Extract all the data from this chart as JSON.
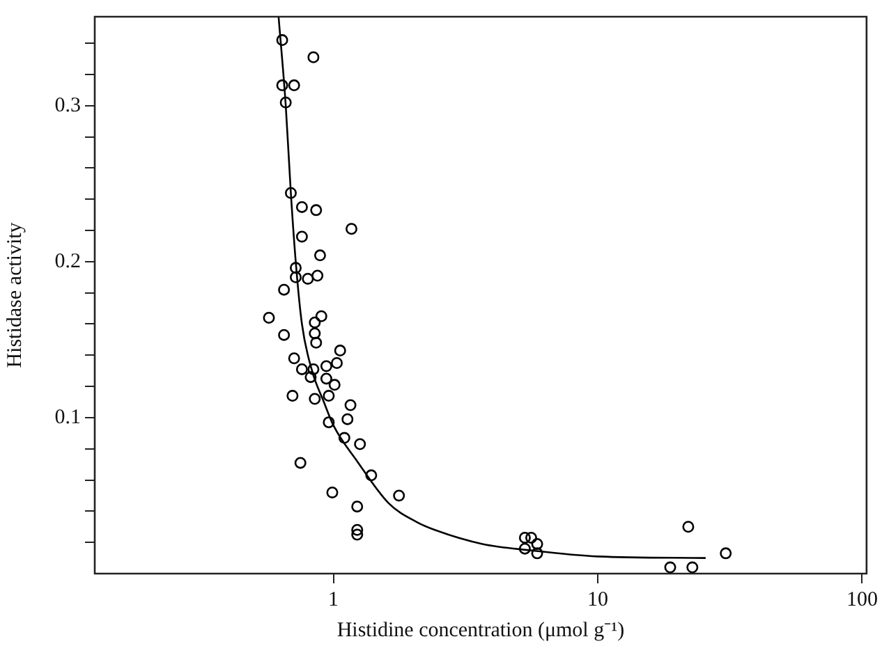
{
  "chart_data": {
    "type": "scatter",
    "xlabel": "Histidine concentration (μmol g⁻¹)",
    "ylabel": "Histidase activity",
    "log": "x",
    "marker": "circle",
    "grid": false,
    "legend": false,
    "xlim": [
      0.125,
      104
    ],
    "xticks": [
      1,
      10,
      100
    ],
    "ylim": [
      0,
      0.357
    ],
    "yticks": [
      {
        "value": 0.02,
        "label": null
      },
      {
        "value": 0.04,
        "label": null
      },
      {
        "value": 0.06,
        "label": null
      },
      {
        "value": 0.08,
        "label": null
      },
      0.1,
      {
        "value": 0.12,
        "label": null
      },
      {
        "value": 0.14,
        "label": null
      },
      {
        "value": 0.16,
        "label": null
      },
      {
        "value": 0.18,
        "label": null
      },
      0.2,
      {
        "value": 0.22,
        "label": null
      },
      {
        "value": 0.24,
        "label": null
      },
      {
        "value": 0.26,
        "label": null
      },
      {
        "value": 0.28,
        "label": null
      },
      0.3,
      {
        "value": 0.32,
        "label": null
      },
      {
        "value": 0.34,
        "label": null
      }
    ],
    "series": [
      {
        "color": "#000000",
        "x": [
          0.64,
          0.84,
          0.64,
          0.71,
          0.66,
          0.69,
          0.76,
          0.86,
          1.17,
          0.76,
          0.89,
          0.72,
          0.72,
          0.8,
          0.87,
          0.65,
          0.57,
          0.9,
          0.85,
          0.65,
          0.85,
          0.86,
          1.06,
          0.71,
          0.76,
          0.84,
          0.94,
          1.03,
          0.82,
          0.94,
          1.01,
          0.7,
          0.96,
          0.85,
          1.16,
          1.13,
          0.96,
          1.1,
          1.26,
          0.75,
          1.39,
          1.77,
          0.99,
          1.23,
          1.23,
          1.23,
          5.3,
          5.6,
          5.9,
          5.3,
          5.9,
          22,
          30.5,
          18.8,
          22.8
        ],
        "values": [
          0.342,
          0.331,
          0.313,
          0.313,
          0.302,
          0.244,
          0.235,
          0.233,
          0.221,
          0.216,
          0.204,
          0.196,
          0.19,
          0.189,
          0.191,
          0.182,
          0.164,
          0.165,
          0.161,
          0.153,
          0.154,
          0.148,
          0.143,
          0.138,
          0.131,
          0.131,
          0.133,
          0.135,
          0.126,
          0.125,
          0.121,
          0.114,
          0.114,
          0.112,
          0.108,
          0.099,
          0.097,
          0.087,
          0.083,
          0.071,
          0.063,
          0.05,
          0.052,
          0.043,
          0.028,
          0.025,
          0.023,
          0.023,
          0.019,
          0.016,
          0.013,
          0.03,
          0.013,
          0.004,
          0.004
        ]
      },
      {
        "type": "line",
        "color": "#000000",
        "marker": "none",
        "line_style": "solid",
        "x": [
          0.62,
          0.66,
          0.69,
          0.72,
          0.76,
          0.83,
          0.92,
          1.0,
          1.23,
          1.62,
          2.07,
          2.42,
          3.66,
          5.5,
          10,
          25.6
        ],
        "values": [
          0.357,
          0.3,
          0.244,
          0.2,
          0.16,
          0.13,
          0.11,
          0.095,
          0.072,
          0.045,
          0.033,
          0.028,
          0.019,
          0.015,
          0.011,
          0.01
        ]
      }
    ]
  }
}
